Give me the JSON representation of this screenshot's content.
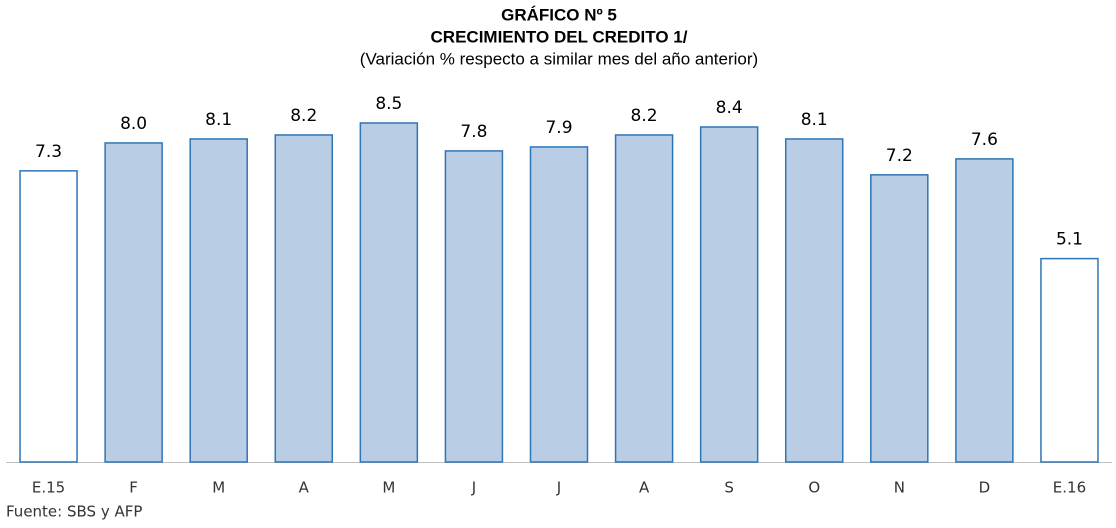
{
  "chart_data": {
    "type": "bar",
    "title": "GRÁFICO Nº 5",
    "subtitle": "CRECIMIENTO DEL CREDITO 1/",
    "description": "(Variación % respecto a similar mes del año anterior)",
    "categories": [
      "E.15",
      "F",
      "M",
      "A",
      "M",
      "J",
      "J",
      "A",
      "S",
      "O",
      "N",
      "D",
      "E.16"
    ],
    "values": [
      7.3,
      8.0,
      8.1,
      8.2,
      8.5,
      7.8,
      7.9,
      8.2,
      8.4,
      8.1,
      7.2,
      7.6,
      5.1
    ],
    "value_labels": [
      "7.3",
      "8.0",
      "8.1",
      "8.2",
      "8.5",
      "7.8",
      "7.9",
      "8.2",
      "8.4",
      "8.1",
      "7.2",
      "7.6",
      "5.1"
    ],
    "colors": [
      "#ffffff",
      "#b9cde5",
      "#b9cde5",
      "#b9cde5",
      "#b9cde5",
      "#b9cde5",
      "#b9cde5",
      "#b9cde5",
      "#b9cde5",
      "#b9cde5",
      "#b9cde5",
      "#b9cde5",
      "#ffffff"
    ],
    "edge_color": "#2e75b6",
    "source": "Fuente: SBS y AFP"
  }
}
